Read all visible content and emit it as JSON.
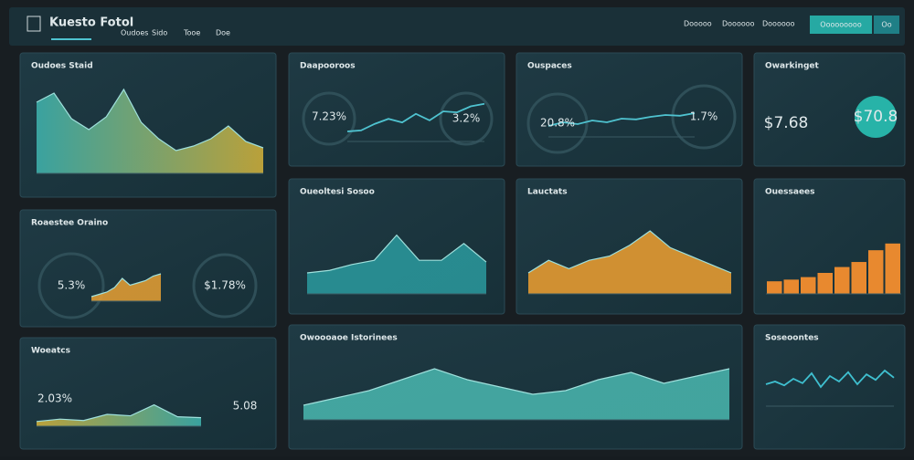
{
  "header": {
    "title": "Kuesto Fotol",
    "nav": [
      "Oudoes",
      "Sido",
      "Tooe",
      "Doe"
    ],
    "right_nav": [
      "Dooooo",
      "Doooooo",
      "Doooooo"
    ],
    "button": "Ooooooooo",
    "button2": "Oo"
  },
  "panels": [
    {
      "title": "Oudoes Staid",
      "chart": {
        "type": "area",
        "color": "#3fb5b0",
        "color2": "#d6b43a",
        "ylim": [
          0,
          100
        ],
        "values": [
          78,
          88,
          60,
          48,
          62,
          92,
          56,
          38,
          25,
          30,
          38,
          52,
          35,
          28
        ]
      }
    },
    {
      "title": "Daapooroos",
      "values": [
        "7.23%",
        "3.2%"
      ],
      "chart": {
        "type": "line",
        "color": "#4fc3d0",
        "ylim": [
          0,
          100
        ],
        "values": [
          20,
          22,
          35,
          45,
          38,
          55,
          42,
          60,
          58,
          70,
          75
        ]
      }
    },
    {
      "title": "Ouspaces",
      "values": [
        "20.8%",
        "1.7%"
      ],
      "chart": {
        "type": "line",
        "color": "#4fc3d0",
        "ylim": [
          0,
          100
        ],
        "values": [
          30,
          40,
          35,
          45,
          40,
          50,
          48,
          55,
          60,
          58,
          65
        ]
      }
    },
    {
      "title": "Owarkinget",
      "values": [
        "$7.68",
        "$70.8"
      ],
      "chart": null
    },
    {
      "title": "Roaestee Oraino",
      "values": [
        "5.3%",
        "$1.78%"
      ],
      "chart": {
        "type": "area",
        "color": "#e8a033",
        "color2": "#e8a033",
        "ylim": [
          0,
          100
        ],
        "values": [
          10,
          15,
          20,
          30,
          50,
          35,
          40,
          45,
          55,
          60
        ]
      }
    },
    {
      "title": "Oueoltesi Sosoo",
      "chart": {
        "type": "area",
        "color": "#2a9a9e",
        "color2": "#2a9a9e",
        "ylim": [
          0,
          100
        ],
        "values": [
          25,
          28,
          35,
          40,
          70,
          40,
          40,
          60,
          38
        ]
      }
    },
    {
      "title": "Lauctats",
      "chart": {
        "type": "area",
        "color": "#f0a030",
        "color2": "#f0a030",
        "ylim": [
          0,
          100
        ],
        "values": [
          25,
          40,
          30,
          40,
          45,
          58,
          75,
          55,
          45,
          35,
          25
        ]
      }
    },
    {
      "title": "Ouessaees",
      "chart": {
        "type": "bar",
        "color": "#e8892f",
        "ylim": [
          0,
          100
        ],
        "values": [
          15,
          17,
          20,
          25,
          32,
          38,
          52,
          60
        ]
      }
    },
    {
      "title": "Woeatcs",
      "values": [
        "2.03%",
        "5.08"
      ],
      "chart": {
        "type": "area",
        "color": "#d6b43a",
        "color2": "#3fb5b0",
        "ylim": [
          0,
          100
        ],
        "values": [
          10,
          15,
          12,
          25,
          22,
          45,
          20,
          18
        ]
      }
    },
    {
      "title": "Owoooaoe Istorinees",
      "chart": {
        "type": "area",
        "color": "#4ab8b0",
        "color2": "#4ab8b0",
        "ylim": [
          0,
          100
        ],
        "values": [
          20,
          30,
          40,
          55,
          70,
          55,
          45,
          35,
          40,
          55,
          65,
          50,
          60,
          70
        ]
      }
    },
    {
      "title": "Soseoontes",
      "chart": {
        "type": "line",
        "color": "#3fc0d0",
        "ylim": [
          0,
          100
        ],
        "values": [
          40,
          45,
          38,
          50,
          42,
          60,
          35,
          55,
          45,
          62,
          40,
          58,
          48,
          65,
          52
        ]
      }
    }
  ]
}
